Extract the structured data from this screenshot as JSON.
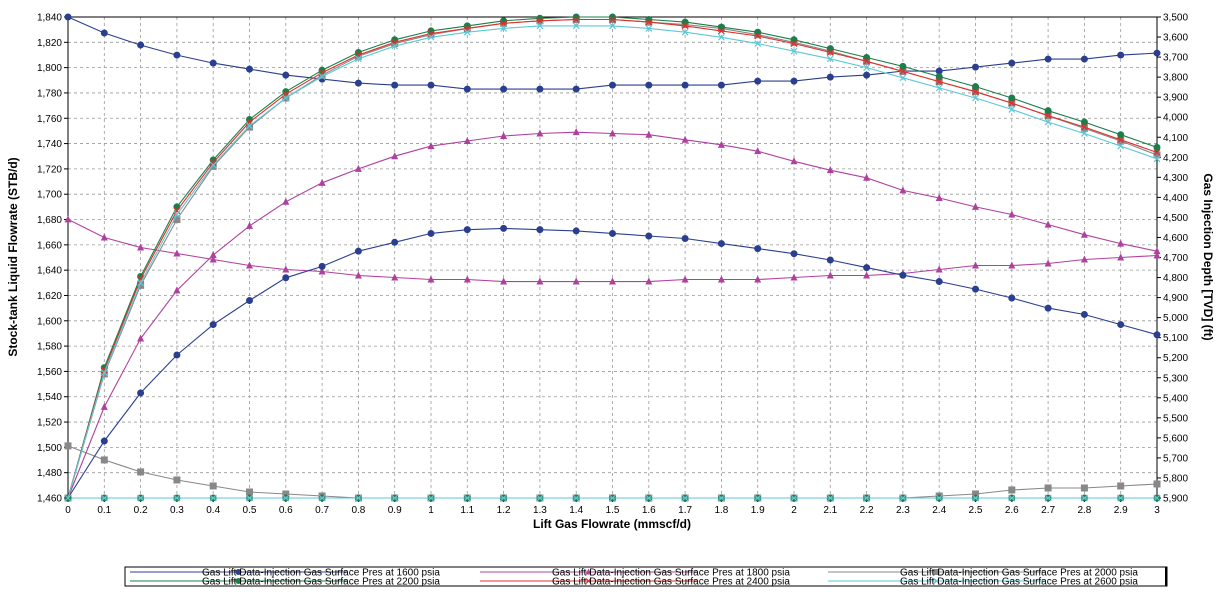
{
  "chart_data": {
    "type": "line",
    "xlabel": "Lift Gas Flowrate (mmscf/d)",
    "ylabel": "Stock-tank Liquid Flowrate (STB/d)",
    "y2label": "Gas Injection Depth [TVD] (ft)",
    "xlim": [
      0,
      3
    ],
    "ylim": [
      1460,
      1840
    ],
    "y2lim": [
      3500,
      5900
    ],
    "y2_reversed": true,
    "grid": true,
    "legend_position": "bottom",
    "x_ticks": [
      "0",
      "0.1",
      "0.2",
      "0.3",
      "0.4",
      "0.5",
      "0.6",
      "0.7",
      "0.8",
      "0.9",
      "1",
      "1.1",
      "1.2",
      "1.3",
      "1.4",
      "1.5",
      "1.6",
      "1.7",
      "1.8",
      "1.9",
      "2",
      "2.1",
      "2.2",
      "2.3",
      "2.4",
      "2.5",
      "2.6",
      "2.7",
      "2.8",
      "2.9",
      "3"
    ],
    "y_ticks": [
      "1,460",
      "1,480",
      "1,500",
      "1,520",
      "1,540",
      "1,560",
      "1,580",
      "1,600",
      "1,620",
      "1,640",
      "1,660",
      "1,680",
      "1,700",
      "1,720",
      "1,740",
      "1,760",
      "1,780",
      "1,800",
      "1,820",
      "1,840"
    ],
    "y2_ticks": [
      "3,500",
      "3,600",
      "3,700",
      "3,800",
      "3,900",
      "4,000",
      "4,100",
      "4,200",
      "4,300",
      "4,400",
      "4,500",
      "4,600",
      "4,700",
      "4,800",
      "4,900",
      "5,000",
      "5,100",
      "5,200",
      "5,300",
      "5,400",
      "5,500",
      "5,600",
      "5,700",
      "5,800",
      "5,900"
    ],
    "x": [
      0,
      0.1,
      0.2,
      0.3,
      0.4,
      0.5,
      0.6,
      0.7,
      0.8,
      0.9,
      1,
      1.1,
      1.2,
      1.3,
      1.4,
      1.5,
      1.6,
      1.7,
      1.8,
      1.9,
      2,
      2.1,
      2.2,
      2.3,
      2.4,
      2.5,
      2.6,
      2.7,
      2.8,
      2.9,
      3
    ],
    "series": [
      {
        "name": "Gas Lift Data-Injection Gas Surface Pres at 1600 psia",
        "color": "#2b3f8f",
        "marker": "circle",
        "axis": "left",
        "values": [
          1460,
          1505,
          1543,
          1573,
          1597,
          1616,
          1634,
          1643,
          1655,
          1662,
          1669,
          1672,
          1673,
          1672,
          1671,
          1669,
          1667,
          1665,
          1661,
          1657,
          1653,
          1648,
          1642,
          1636,
          1631,
          1625,
          1618,
          1610,
          1605,
          1597,
          1589
        ]
      },
      {
        "name": "Gas Lift Data-Injection Gas Surface Pres at 1800 psia",
        "color": "#b0409f",
        "marker": "triangle",
        "axis": "left",
        "values": [
          1460,
          1532,
          1586,
          1624,
          1652,
          1675,
          1694,
          1709,
          1720,
          1730,
          1738,
          1742,
          1746,
          1748,
          1749,
          1748,
          1747,
          1743,
          1739,
          1734,
          1726,
          1719,
          1713,
          1703,
          1697,
          1690,
          1684,
          1676,
          1668,
          1661,
          1655
        ]
      },
      {
        "name": "Gas Lift Data-Injection Gas Surface Pres at 2000 psia",
        "color": "#888888",
        "marker": "square",
        "axis": "left",
        "values": [
          1460,
          1558,
          1628,
          1680,
          1722,
          1753,
          1776,
          1794,
          1809,
          1819,
          1826,
          1831,
          1835,
          1837,
          1838,
          1838,
          1836,
          1834,
          1831,
          1826,
          1820,
          1813,
          1805,
          1797,
          1789,
          1781,
          1772,
          1762,
          1752,
          1742,
          1731
        ]
      },
      {
        "name": "Gas Lift Data-Injection Gas Surface Pres at 2200 psia",
        "color": "#1a7f4a",
        "marker": "circle",
        "axis": "left",
        "values": [
          1460,
          1563,
          1635,
          1690,
          1727,
          1759,
          1781,
          1798,
          1812,
          1822,
          1829,
          1833,
          1837,
          1839,
          1840,
          1840,
          1838,
          1836,
          1832,
          1828,
          1822,
          1815,
          1808,
          1801,
          1793,
          1785,
          1776,
          1766,
          1757,
          1747,
          1737
        ]
      },
      {
        "name": "Gas Lift Data-Injection Gas Surface Pres at 2400 psia",
        "color": "#e0302a",
        "marker": "x",
        "axis": "left",
        "values": [
          1460,
          1561,
          1633,
          1687,
          1725,
          1757,
          1779,
          1796,
          1810,
          1820,
          1827,
          1831,
          1835,
          1837,
          1838,
          1838,
          1836,
          1833,
          1829,
          1825,
          1819,
          1812,
          1805,
          1797,
          1789,
          1781,
          1772,
          1762,
          1753,
          1743,
          1733
        ]
      },
      {
        "name": "Gas Lift Data-Injection Gas Surface Pres at 2600 psia",
        "color": "#5bc8d8",
        "marker": "x",
        "axis": "left",
        "values": [
          1460,
          1559,
          1630,
          1684,
          1723,
          1754,
          1776,
          1793,
          1807,
          1817,
          1824,
          1828,
          1831,
          1833,
          1833,
          1833,
          1831,
          1828,
          1824,
          1819,
          1813,
          1807,
          1800,
          1792,
          1784,
          1776,
          1767,
          1757,
          1748,
          1738,
          1728
        ]
      }
    ],
    "y2_series": [
      {
        "color": "#2b3f8f",
        "marker": "circle",
        "axis": "right",
        "values": [
          3500,
          3580,
          3640,
          3690,
          3730,
          3760,
          3790,
          3810,
          3830,
          3840,
          3840,
          3860,
          3860,
          3860,
          3860,
          3840,
          3840,
          3840,
          3840,
          3820,
          3820,
          3800,
          3790,
          3770,
          3770,
          3750,
          3730,
          3710,
          3710,
          3690,
          3680
        ]
      },
      {
        "color": "#b0409f",
        "marker": "triangle",
        "axis": "right",
        "values": [
          4510,
          4600,
          4650,
          4680,
          4710,
          4740,
          4760,
          4770,
          4790,
          4800,
          4810,
          4810,
          4820,
          4820,
          4820,
          4820,
          4820,
          4810,
          4810,
          4810,
          4800,
          4790,
          4790,
          4780,
          4760,
          4740,
          4740,
          4730,
          4710,
          4700,
          4690
        ]
      },
      {
        "color": "#888888",
        "marker": "square",
        "axis": "right",
        "values": [
          5640,
          5710,
          5770,
          5810,
          5840,
          5870,
          5880,
          5890,
          5910,
          5920,
          5920,
          5930,
          5930,
          5930,
          5940,
          5930,
          5930,
          5930,
          5930,
          5920,
          5920,
          5910,
          5910,
          5900,
          5890,
          5880,
          5860,
          5850,
          5850,
          5840,
          5830
        ]
      },
      {
        "color": "#1a7f4a",
        "marker": "circle",
        "axis": "right",
        "values": [
          5980,
          5980,
          5980,
          5980,
          5980,
          5980,
          5980,
          5980,
          5980,
          5980,
          5980,
          5980,
          5980,
          5980,
          5980,
          5980,
          5980,
          5980,
          5980,
          5980,
          5980,
          5980,
          5980,
          5980,
          5980,
          5980,
          5980,
          5980,
          5980,
          5980,
          5980
        ]
      },
      {
        "color": "#e0302a",
        "marker": "x",
        "axis": "right",
        "values": [
          5980,
          5980,
          5980,
          5980,
          5980,
          5980,
          5980,
          5980,
          5980,
          5980,
          5980,
          5980,
          5980,
          5980,
          5980,
          5980,
          5980,
          5980,
          5980,
          5980,
          5980,
          5980,
          5980,
          5980,
          5980,
          5980,
          5980,
          5980,
          5980,
          5980,
          5980
        ]
      },
      {
        "color": "#5bc8d8",
        "marker": "x",
        "axis": "right",
        "values": [
          5980,
          5980,
          5980,
          5980,
          5980,
          5980,
          5980,
          5980,
          5980,
          5980,
          5980,
          5980,
          5980,
          5980,
          5980,
          5980,
          5980,
          5980,
          5980,
          5980,
          5980,
          5980,
          5980,
          5980,
          5980,
          5980,
          5980,
          5980,
          5980,
          5980,
          5980
        ]
      }
    ]
  }
}
